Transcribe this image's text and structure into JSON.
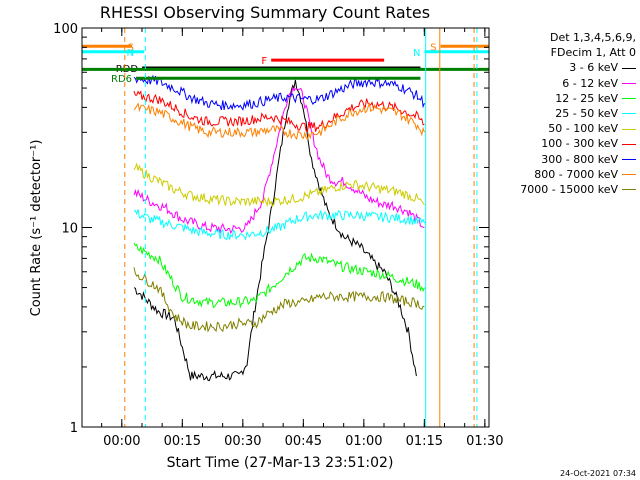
{
  "chart_data": {
    "type": "line",
    "title": "RHESSI Observing Summary Count Rates",
    "xlabel": "Start Time (27-Mar-13 23:51:02)",
    "ylabel": "Count Rate (s⁻¹ detector⁻¹)",
    "y_scale": "log",
    "ylim": [
      1,
      100
    ],
    "xlim_minutes": [
      -0.9,
      100
    ],
    "x_ticks": [
      {
        "label": "00:00",
        "minutes": 8.97
      },
      {
        "label": "00:15",
        "minutes": 23.97
      },
      {
        "label": "00:30",
        "minutes": 38.97
      },
      {
        "label": "00:45",
        "minutes": 53.97
      },
      {
        "label": "01:00",
        "minutes": 68.97
      },
      {
        "label": "01:15",
        "minutes": 83.97
      },
      {
        "label": "01:30",
        "minutes": 98.97
      }
    ],
    "y_ticks": [
      {
        "label": "1",
        "value": 1
      },
      {
        "label": "10",
        "value": 10
      },
      {
        "label": "100",
        "value": 100
      }
    ],
    "grid": false,
    "legend_position": "right",
    "legend_header": [
      "Det 1,3,4,5,6,9,",
      "FDecim 1, Att 0"
    ],
    "series": [
      {
        "name": "3 - 6 keV",
        "color": "#000000",
        "x": [
          12,
          18,
          22,
          24,
          26,
          30,
          34,
          38,
          40,
          42,
          44,
          46,
          48,
          50,
          52,
          54,
          56,
          58,
          60,
          64,
          68,
          72,
          74,
          76,
          78,
          80,
          82
        ],
        "y": [
          5,
          3.8,
          3.5,
          2.5,
          1.8,
          1.8,
          1.8,
          1.8,
          2.1,
          4,
          7,
          12,
          22,
          40,
          55,
          40,
          22,
          16,
          12,
          9,
          8,
          6.5,
          6,
          5,
          4,
          3,
          1.8
        ]
      },
      {
        "name": "6 - 12 keV",
        "color": "#ff00ff",
        "x": [
          12,
          16,
          20,
          24,
          30,
          36,
          40,
          44,
          48,
          50,
          52,
          54,
          56,
          58,
          60,
          62,
          64,
          66,
          70,
          74,
          76,
          78,
          80,
          82,
          84
        ],
        "y": [
          15,
          13.5,
          12.5,
          11,
          10,
          9.8,
          10,
          14,
          30,
          45,
          52,
          45,
          30,
          22,
          18,
          17,
          17,
          16,
          14,
          13,
          13,
          12.5,
          12,
          11,
          10
        ]
      },
      {
        "name": "12 - 25 keV",
        "color": "#00ff00",
        "x": [
          12,
          18,
          24,
          30,
          36,
          42,
          46,
          50,
          54,
          58,
          62,
          66,
          70,
          74,
          78,
          82,
          84
        ],
        "y": [
          8,
          7,
          4.5,
          4.2,
          4.2,
          4.3,
          5,
          6,
          7,
          7,
          6.5,
          6.2,
          6,
          5.8,
          5.5,
          5.2,
          5
        ]
      },
      {
        "name": "25 - 50 keV",
        "color": "#00ffff",
        "x": [
          12,
          16,
          20,
          24,
          28,
          34,
          40,
          44,
          48,
          52,
          56,
          60,
          64,
          68,
          72,
          76,
          80,
          84
        ],
        "y": [
          12,
          11,
          10.5,
          10,
          9.5,
          9.2,
          9.2,
          9.5,
          10,
          11,
          11.5,
          11.5,
          11.5,
          11.5,
          11.3,
          11.2,
          11,
          10.5
        ]
      },
      {
        "name": "50 - 100 keV",
        "color": "#cccc00",
        "x": [
          12,
          16,
          22,
          26,
          30,
          36,
          40,
          46,
          52,
          58,
          62,
          66,
          70,
          74,
          78,
          82,
          84
        ],
        "y": [
          20,
          18,
          15.5,
          14.5,
          14,
          13.5,
          13.5,
          13.5,
          14,
          15,
          16,
          16.5,
          16,
          15.5,
          15,
          14,
          13
        ]
      },
      {
        "name": "100 - 300 keV",
        "color": "#ff0000",
        "x": [
          12,
          18,
          22,
          26,
          30,
          34,
          38,
          42,
          46,
          50,
          54,
          58,
          62,
          66,
          70,
          74,
          78,
          82,
          84
        ],
        "y": [
          46,
          44,
          40,
          36,
          34,
          34,
          34,
          35,
          36,
          34,
          32,
          32,
          36,
          40,
          42,
          41,
          39,
          36,
          33
        ]
      },
      {
        "name": "300 - 800 keV",
        "color": "#0000ff",
        "x": [
          12,
          18,
          22,
          26,
          30,
          34,
          38,
          42,
          46,
          50,
          54,
          58,
          62,
          66,
          70,
          74,
          78,
          82,
          84
        ],
        "y": [
          56,
          54,
          50,
          45,
          42,
          41,
          41,
          42,
          44,
          45,
          44,
          44,
          48,
          52,
          54,
          53,
          51,
          46,
          42
        ]
      },
      {
        "name": "800 - 7000 keV",
        "color": "#ff8000",
        "x": [
          12,
          18,
          22,
          26,
          30,
          34,
          38,
          42,
          46,
          50,
          54,
          58,
          62,
          66,
          70,
          74,
          78,
          82,
          84
        ],
        "y": [
          40,
          38,
          35,
          32,
          30,
          30,
          30,
          30,
          31,
          30,
          29,
          30,
          34,
          38,
          40,
          39,
          37,
          33,
          30
        ]
      },
      {
        "name": "7000 - 15000 keV",
        "color": "#808000",
        "x": [
          12,
          18,
          22,
          26,
          30,
          34,
          38,
          42,
          46,
          50,
          54,
          58,
          62,
          66,
          70,
          74,
          78,
          82,
          84
        ],
        "y": [
          6,
          5,
          3.6,
          3.2,
          3.2,
          3.2,
          3.3,
          3.3,
          3.8,
          4.2,
          4.2,
          4.5,
          4.5,
          4.5,
          4.5,
          4.5,
          4.3,
          4.2,
          4
        ]
      }
    ],
    "flags": [
      {
        "label": "S",
        "color": "#ff8000",
        "y": 81,
        "x_start": -0.9,
        "x_end": 11.5
      },
      {
        "label": "S",
        "color": "#ff8000",
        "y": 81,
        "x_start": 88,
        "x_end": 100
      },
      {
        "label": "N",
        "color": "#00ffff",
        "y": 76,
        "x_start": -0.9,
        "x_end": 14.5
      },
      {
        "label": "N",
        "color": "#00ffff",
        "y": 76,
        "x_start": 84,
        "x_end": 100
      },
      {
        "label": "RDD",
        "color": "#000000",
        "y": 63,
        "x_start": 14,
        "x_end": 83
      },
      {
        "label": "RD6",
        "color": "#008000",
        "y": 56,
        "x_start": 12.5,
        "x_end": 83
      },
      {
        "label": "",
        "color": "#008000",
        "y": 62,
        "x_start": -0.9,
        "x_end": 100
      },
      {
        "label": "F",
        "color": "#ff0000",
        "y": 69,
        "x_start": 46,
        "x_end": 74
      }
    ],
    "vertical_markers": [
      {
        "x": 9.7,
        "color": "#ff8000",
        "style": "dashed"
      },
      {
        "x": 14.8,
        "color": "#00ffff",
        "style": "dashed"
      },
      {
        "x": 87.8,
        "color": "#ff8000",
        "style": "solid"
      },
      {
        "x": 96.3,
        "color": "#ff8000",
        "style": "dashed"
      },
      {
        "x": 97.0,
        "color": "#00ffff",
        "style": "dashed"
      },
      {
        "x": 84.3,
        "color": "#00ffff",
        "style": "solid"
      }
    ]
  },
  "footer_date": "24-Oct-2021 07:34"
}
